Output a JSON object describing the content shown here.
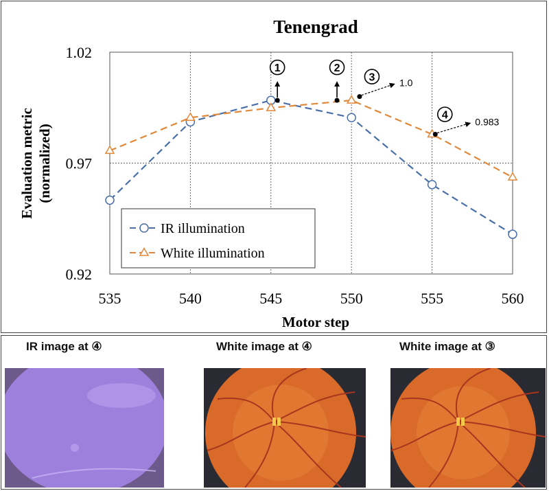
{
  "chart_data": {
    "type": "line",
    "title": "Tenengrad",
    "xlabel": "Motor step",
    "ylabel_line1": "Evaluation metric",
    "ylabel_line2": "(normalized)",
    "x": [
      535,
      540,
      545,
      550,
      555,
      560
    ],
    "x_ticks": [
      "535",
      "540",
      "545",
      "550",
      "555",
      "560"
    ],
    "xlim": [
      535,
      560
    ],
    "ylim": [
      0.92,
      1.02
    ],
    "y_ticks": [
      "0.92",
      "0.97",
      "1.02"
    ],
    "y_tick_values": [
      0.92,
      0.97,
      1.02
    ],
    "grid": "vertical at each x tick, horizontal dotted at 0.97",
    "legend_position": "bottom-left",
    "series": [
      {
        "name": "IR illumination",
        "color": "#4a6fa8",
        "marker": "circle",
        "values": [
          0.9533,
          0.9886,
          0.9983,
          0.9905,
          0.9603,
          0.9379
        ]
      },
      {
        "name": "White illumination",
        "color": "#e0883a",
        "marker": "triangle",
        "values": [
          0.9756,
          0.9905,
          0.9949,
          0.9983,
          0.983,
          0.9636
        ]
      }
    ],
    "annotations": [
      {
        "label": "①",
        "x": 545.4,
        "y": 0.9983
      },
      {
        "label": "②",
        "x": 549.1,
        "y": 0.9983
      },
      {
        "label": "③",
        "x": 550.5,
        "y": 1.0,
        "value": "1.0"
      },
      {
        "label": "④",
        "x": 555.2,
        "y": 0.983,
        "value": "0.983"
      }
    ]
  },
  "photos": {
    "ir_label": "IR image at ④",
    "white4_label": "White image at ④",
    "white3_label": "White image at ③"
  },
  "colors": {
    "ir_photo": "#9a7ad6",
    "retina": "#e07830",
    "vessel": "#b8402a"
  }
}
